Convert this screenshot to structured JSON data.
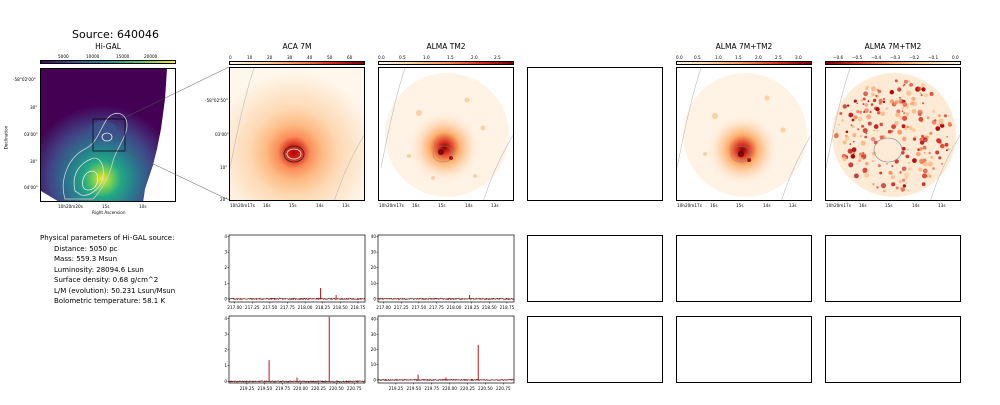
{
  "source_title": "Source: 640046",
  "panels": {
    "higal": {
      "title": "Hi-GAL",
      "cbar_ticks": [
        "5000",
        "10000",
        "15000",
        "20000"
      ],
      "xlabel": "Right Ascension",
      "ylabel": "Declination",
      "y_ticks": [
        "-58°02'00\"",
        "30\"",
        "03'00\"",
        "30\"",
        "04'00\""
      ],
      "x_ticks": [
        "10h20m20s",
        "15s",
        "10s"
      ]
    },
    "aca7m": {
      "title": "ACA 7M",
      "cbar_ticks": [
        "0",
        "10",
        "20",
        "30",
        "40",
        "50",
        "60"
      ],
      "y_ticks": [
        "-58°02'50\"",
        "03'00\"",
        "10\"",
        "20\""
      ],
      "x_ticks": [
        "10h20m17s",
        "16s",
        "15s",
        "14s",
        "13s"
      ]
    },
    "almatm2": {
      "title": "ALMA TM2",
      "cbar_ticks": [
        "0.0",
        "0.5",
        "1.0",
        "1.5",
        "2.0",
        "2.5"
      ],
      "x_ticks": [
        "10h20m17s",
        "16s",
        "15s",
        "14s",
        "13s"
      ]
    },
    "alma7mtm2": {
      "title": "ALMA 7M+TM2",
      "cbar_ticks": [
        "0.0",
        "0.5",
        "1.0",
        "1.5",
        "2.0",
        "2.5",
        "3.0"
      ],
      "x_ticks": [
        "10h20m17s",
        "16s",
        "15s",
        "14s",
        "13s"
      ]
    },
    "alma7mtm2_res": {
      "title": "ALMA 7M+TM2",
      "cbar_ticks": [
        "−0.6",
        "−0.5",
        "−0.4",
        "−0.3",
        "−0.2",
        "−0.1",
        "0.0"
      ],
      "x_ticks": [
        "10h20m17s",
        "16s",
        "15s",
        "14s",
        "13s"
      ]
    }
  },
  "params": {
    "heading": "Physical parameters of Hi-GAL source:",
    "lines": [
      "Distance: 5050 pc",
      "Mass: 559.3 Msun",
      "Luminosity: 28094.6 Lsun",
      "Surface density: 0.68 g/cm^2",
      "L/M (evolution): 50.231 Lsun/Msun",
      "Bolometric temperature: 58.1 K"
    ]
  },
  "chart_data": [
    {
      "type": "line",
      "id": "spec_aca_spw1",
      "x_ticks": [
        217.0,
        217.25,
        217.5,
        217.75,
        218.0,
        218.25,
        218.5,
        218.75
      ],
      "x_tick_labels": [
        "217.00",
        "217.25",
        "217.50",
        "217.75",
        "218.00",
        "218.25",
        "218.50",
        "218.75"
      ],
      "xlim": [
        216.92,
        218.85
      ],
      "ylim": [
        -0.2,
        4.1
      ],
      "y_ticks": [
        0,
        1,
        2,
        3,
        4
      ],
      "peaks": [
        {
          "x": 218.22,
          "y": 0.7
        },
        {
          "x": 218.44,
          "y": 0.25
        }
      ],
      "noise": 0.06
    },
    {
      "type": "line",
      "id": "spec_tm2_spw1",
      "x_ticks": [
        217.0,
        217.25,
        217.5,
        217.75,
        218.0,
        218.25,
        218.5,
        218.75
      ],
      "x_tick_labels": [
        "217.00",
        "217.25",
        "217.50",
        "217.75",
        "218.00",
        "218.25",
        "218.50",
        "218.75"
      ],
      "xlim": [
        216.92,
        218.85
      ],
      "ylim": [
        -2,
        41
      ],
      "y_ticks": [
        0,
        10,
        20,
        30,
        40
      ],
      "peaks": [
        {
          "x": 218.22,
          "y": 2.5
        }
      ],
      "noise": 0.6
    },
    {
      "type": "line",
      "id": "spec_aca_spw2",
      "x_ticks": [
        219.25,
        219.5,
        219.75,
        220.0,
        220.25,
        220.5,
        220.75
      ],
      "x_tick_labels": [
        "219.25",
        "219.50",
        "219.75",
        "220.00",
        "220.25",
        "220.50",
        "220.75"
      ],
      "xlim": [
        219.0,
        220.9
      ],
      "ylim": [
        -0.1,
        4.15
      ],
      "y_ticks": [
        0,
        1,
        2,
        3,
        4
      ],
      "peaks": [
        {
          "x": 219.56,
          "y": 1.35
        },
        {
          "x": 219.95,
          "y": 0.25
        },
        {
          "x": 220.4,
          "y": 4.1
        }
      ],
      "noise": 0.06
    },
    {
      "type": "line",
      "id": "spec_tm2_spw2",
      "x_ticks": [
        219.25,
        219.5,
        219.75,
        220.0,
        220.25,
        220.5,
        220.75
      ],
      "x_tick_labels": [
        "219.25",
        "219.50",
        "219.75",
        "220.00",
        "220.25",
        "220.50",
        "220.75"
      ],
      "xlim": [
        219.0,
        220.9
      ],
      "ylim": [
        -2,
        42
      ],
      "y_ticks": [
        0,
        10,
        20,
        30,
        40
      ],
      "peaks": [
        {
          "x": 219.56,
          "y": 3.5
        },
        {
          "x": 219.95,
          "y": 1.5
        },
        {
          "x": 220.4,
          "y": 23
        }
      ],
      "noise": 0.6
    }
  ]
}
